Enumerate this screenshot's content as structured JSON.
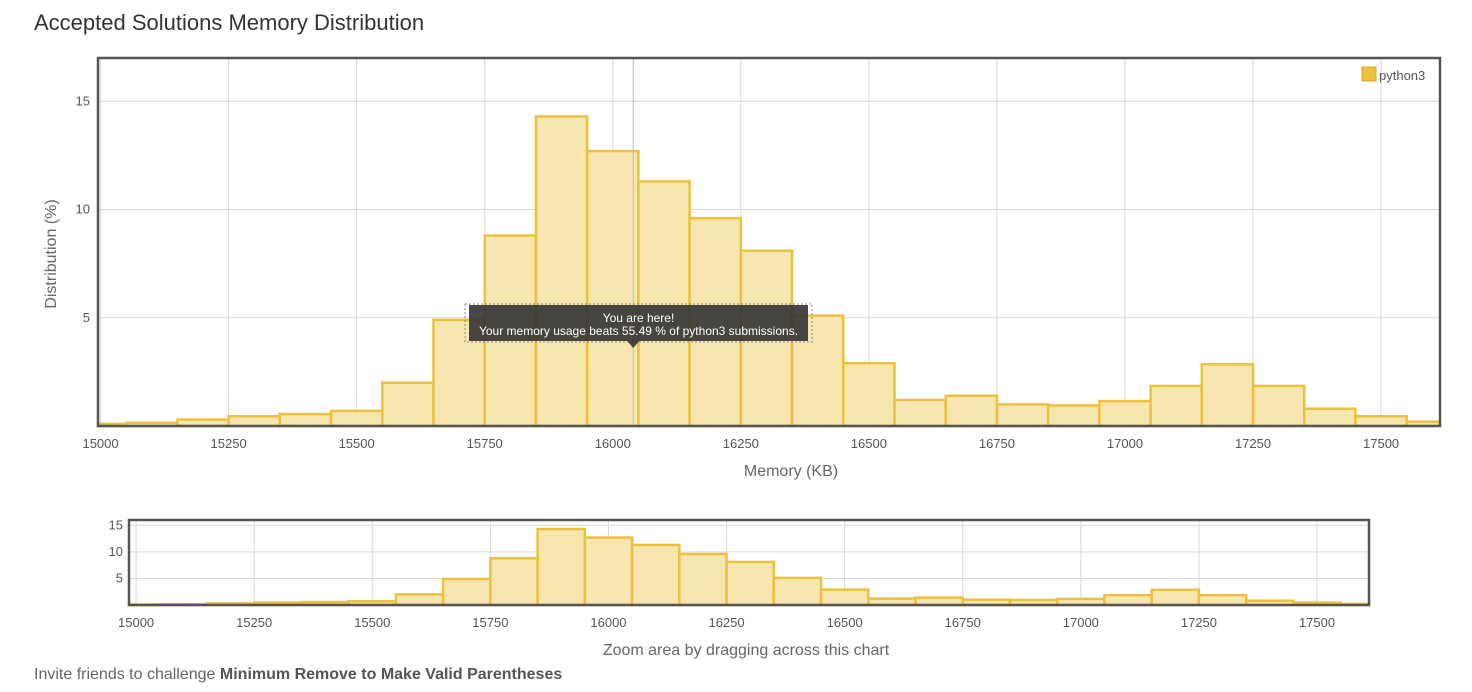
{
  "page": {
    "title": "Accepted Solutions Memory Distribution",
    "footer_prefix": "Invite friends to challenge",
    "footer_problem": "Minimum Remove to Make Valid Parentheses"
  },
  "colors": {
    "bar_fill": "#f8e6b0",
    "bar_stroke": "#ecc13d",
    "frame": "#555555",
    "grid": "#d9d9d9",
    "tooltip_bg": "#333333"
  },
  "chart_data": [
    {
      "type": "bar",
      "role": "main",
      "title": "",
      "xlabel": "Memory (KB)",
      "ylabel": "Distribution (%)",
      "xlim": [
        14995,
        17615
      ],
      "ylim": [
        0,
        17
      ],
      "xticks": [
        15000,
        15250,
        15500,
        15750,
        16000,
        16250,
        16500,
        16750,
        17000,
        17250,
        17500
      ],
      "yticks": [
        5,
        10,
        15
      ],
      "grid": true,
      "legend": {
        "placement": "top-right",
        "entries": [
          "python3"
        ]
      },
      "bin_width": 100,
      "bins": [
        {
          "x": 15000,
          "y": 0.1
        },
        {
          "x": 15100,
          "y": 0.15
        },
        {
          "x": 15200,
          "y": 0.3
        },
        {
          "x": 15300,
          "y": 0.45
        },
        {
          "x": 15400,
          "y": 0.55
        },
        {
          "x": 15500,
          "y": 0.7
        },
        {
          "x": 15600,
          "y": 2.0
        },
        {
          "x": 15700,
          "y": 4.9
        },
        {
          "x": 15800,
          "y": 8.8
        },
        {
          "x": 15900,
          "y": 14.3
        },
        {
          "x": 16000,
          "y": 12.7
        },
        {
          "x": 16100,
          "y": 11.3
        },
        {
          "x": 16200,
          "y": 9.6
        },
        {
          "x": 16300,
          "y": 8.1
        },
        {
          "x": 16400,
          "y": 5.1
        },
        {
          "x": 16500,
          "y": 2.9
        },
        {
          "x": 16600,
          "y": 1.2
        },
        {
          "x": 16700,
          "y": 1.4
        },
        {
          "x": 16800,
          "y": 1.0
        },
        {
          "x": 16900,
          "y": 0.95
        },
        {
          "x": 17000,
          "y": 1.15
        },
        {
          "x": 17100,
          "y": 1.85
        },
        {
          "x": 17200,
          "y": 2.85
        },
        {
          "x": 17300,
          "y": 1.85
        },
        {
          "x": 17400,
          "y": 0.8
        },
        {
          "x": 17500,
          "y": 0.45
        },
        {
          "x": 17600,
          "y": 0.2
        }
      ],
      "marker_x": 16040,
      "annotation": {
        "line1": "You are here!",
        "line2": "Your memory usage beats 55.49 % of python3 submissions."
      }
    },
    {
      "type": "bar",
      "role": "navigator",
      "xlabel": "Zoom area by dragging across this chart",
      "xlim": [
        14985,
        17610
      ],
      "ylim": [
        0,
        16
      ],
      "xticks": [
        15000,
        15250,
        15500,
        15750,
        16000,
        16250,
        16500,
        16750,
        17000,
        17250,
        17500
      ],
      "yticks": [
        5,
        10,
        15
      ],
      "grid": true
    }
  ]
}
